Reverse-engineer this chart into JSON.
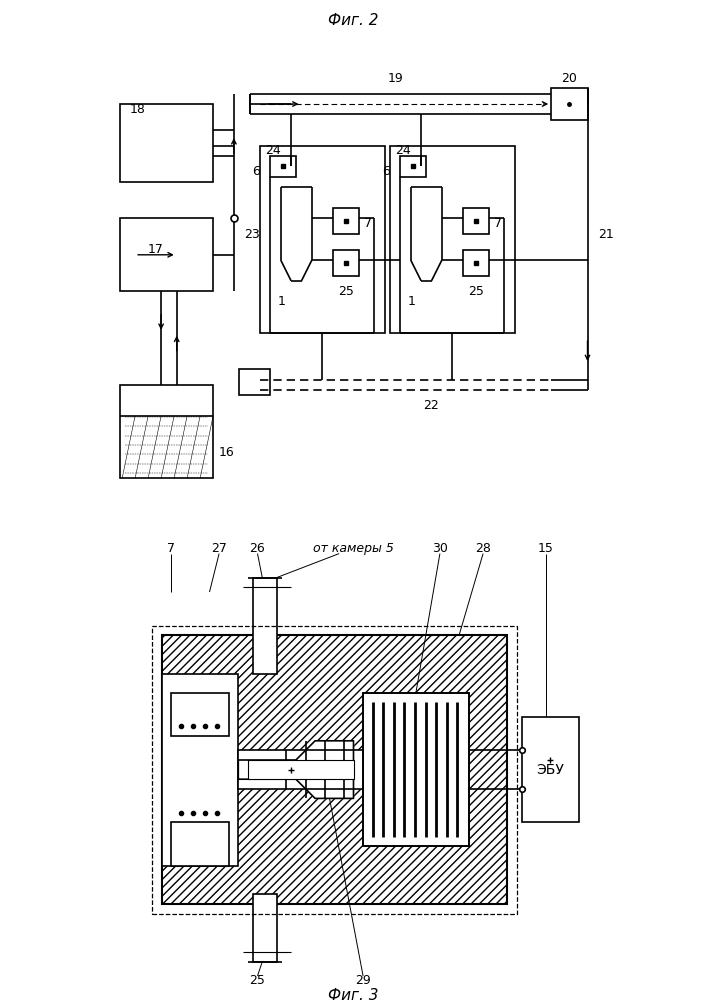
{
  "fig2_title": "Фиг. 2",
  "fig3_title": "Фиг. 3",
  "fig3_label": "от камеры 5",
  "fig3_ebu": "ЭБУ",
  "bg_color": "#ffffff",
  "lc": "#000000",
  "lw": 1.2,
  "lw_thin": 0.7,
  "lw_thick": 1.8
}
